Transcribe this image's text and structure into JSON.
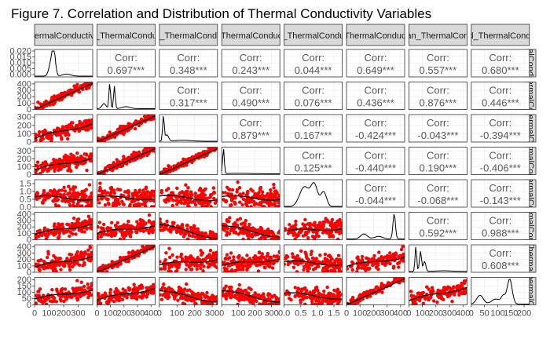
{
  "chart_data": {
    "type": "scatter",
    "title": "Figure 7. Correlation and Distribution of Thermal Conductivity Variables",
    "variables": [
      {
        "strip": "ThermalConductivity",
        "range": [
          0,
          400
        ],
        "ticks": [
          0,
          100,
          200,
          300
        ],
        "tick_labels": [
          "0",
          "100",
          "200",
          "300"
        ]
      },
      {
        "strip": "mean_ThermalConductivity",
        "range": [
          0,
          430
        ],
        "ticks": [
          0,
          100,
          200,
          300,
          400
        ],
        "tick_labels": [
          "0",
          "100",
          "200",
          "300",
          "400"
        ]
      },
      {
        "strip": "gmean_ThermalConductivity",
        "range": [
          0,
          330
        ],
        "ticks": [
          0,
          100,
          200,
          300
        ],
        "tick_labels": [
          "0",
          "100",
          "200",
          "300"
        ]
      },
      {
        "strip": "min_ThermalConductivity",
        "range": [
          0,
          350
        ],
        "ticks": [
          0,
          100,
          200,
          300
        ],
        "tick_labels": [
          "0",
          "100",
          "200",
          "300"
        ]
      },
      {
        "strip": "range_ThermalConductivity",
        "range": [
          0,
          1.75
        ],
        "ticks": [
          0.0,
          0.5,
          1.0,
          1.5
        ],
        "tick_labels": [
          "0.0",
          "0.5",
          "1.0",
          "1.5"
        ]
      },
      {
        "strip": "std_ThermalConductivity",
        "range": [
          0,
          430
        ],
        "ticks": [
          0,
          100,
          200,
          300,
          400
        ],
        "tick_labels": [
          "0",
          "100",
          "200",
          "300",
          "400"
        ]
      },
      {
        "strip": "wtd_mean_ThermalConductivity",
        "range": [
          0,
          430
        ],
        "ticks": [
          0,
          100,
          200,
          300,
          400
        ],
        "tick_labels": [
          "0",
          "100",
          "200",
          "300",
          "400"
        ]
      },
      {
        "strip": "wtd_std_ThermalConductivity",
        "range": [
          0,
          220
        ],
        "ticks": [
          0,
          50,
          100,
          150,
          200
        ],
        "tick_labels": [
          "0",
          "50",
          "100",
          "150",
          "200"
        ]
      }
    ],
    "density_axis_labels": [
      "0.000",
      "0.005",
      "0.010",
      "0.015",
      "0.020"
    ],
    "corr_label": "Corr:",
    "correlations": [
      [
        1,
        2,
        "0.697***"
      ],
      [
        1,
        3,
        "0.348***"
      ],
      [
        1,
        4,
        "0.243***"
      ],
      [
        1,
        5,
        "0.044***"
      ],
      [
        1,
        6,
        "0.649***"
      ],
      [
        1,
        7,
        "0.557***"
      ],
      [
        1,
        8,
        "0.680***"
      ],
      [
        2,
        3,
        "0.317***"
      ],
      [
        2,
        4,
        "0.490***"
      ],
      [
        2,
        5,
        "0.076***"
      ],
      [
        2,
        6,
        "0.436***"
      ],
      [
        2,
        7,
        "0.876***"
      ],
      [
        2,
        8,
        "0.446***"
      ],
      [
        3,
        4,
        "0.879***"
      ],
      [
        3,
        5,
        "0.167***"
      ],
      [
        3,
        6,
        "-0.424***"
      ],
      [
        3,
        7,
        "-0.043***"
      ],
      [
        3,
        8,
        "-0.394***"
      ],
      [
        4,
        5,
        "0.125***"
      ],
      [
        4,
        6,
        "-0.440***"
      ],
      [
        4,
        7,
        "0.190***"
      ],
      [
        4,
        8,
        "-0.406***"
      ],
      [
        5,
        6,
        "-0.044***"
      ],
      [
        5,
        7,
        "-0.068***"
      ],
      [
        5,
        8,
        "-0.143***"
      ],
      [
        6,
        7,
        "0.592***"
      ],
      [
        6,
        8,
        "0.988***"
      ],
      [
        7,
        8,
        "0.608***"
      ]
    ],
    "point_color": "#ff0000",
    "line_color": "#000000",
    "strip_fill": "#d9d9d9",
    "grid": true
  }
}
